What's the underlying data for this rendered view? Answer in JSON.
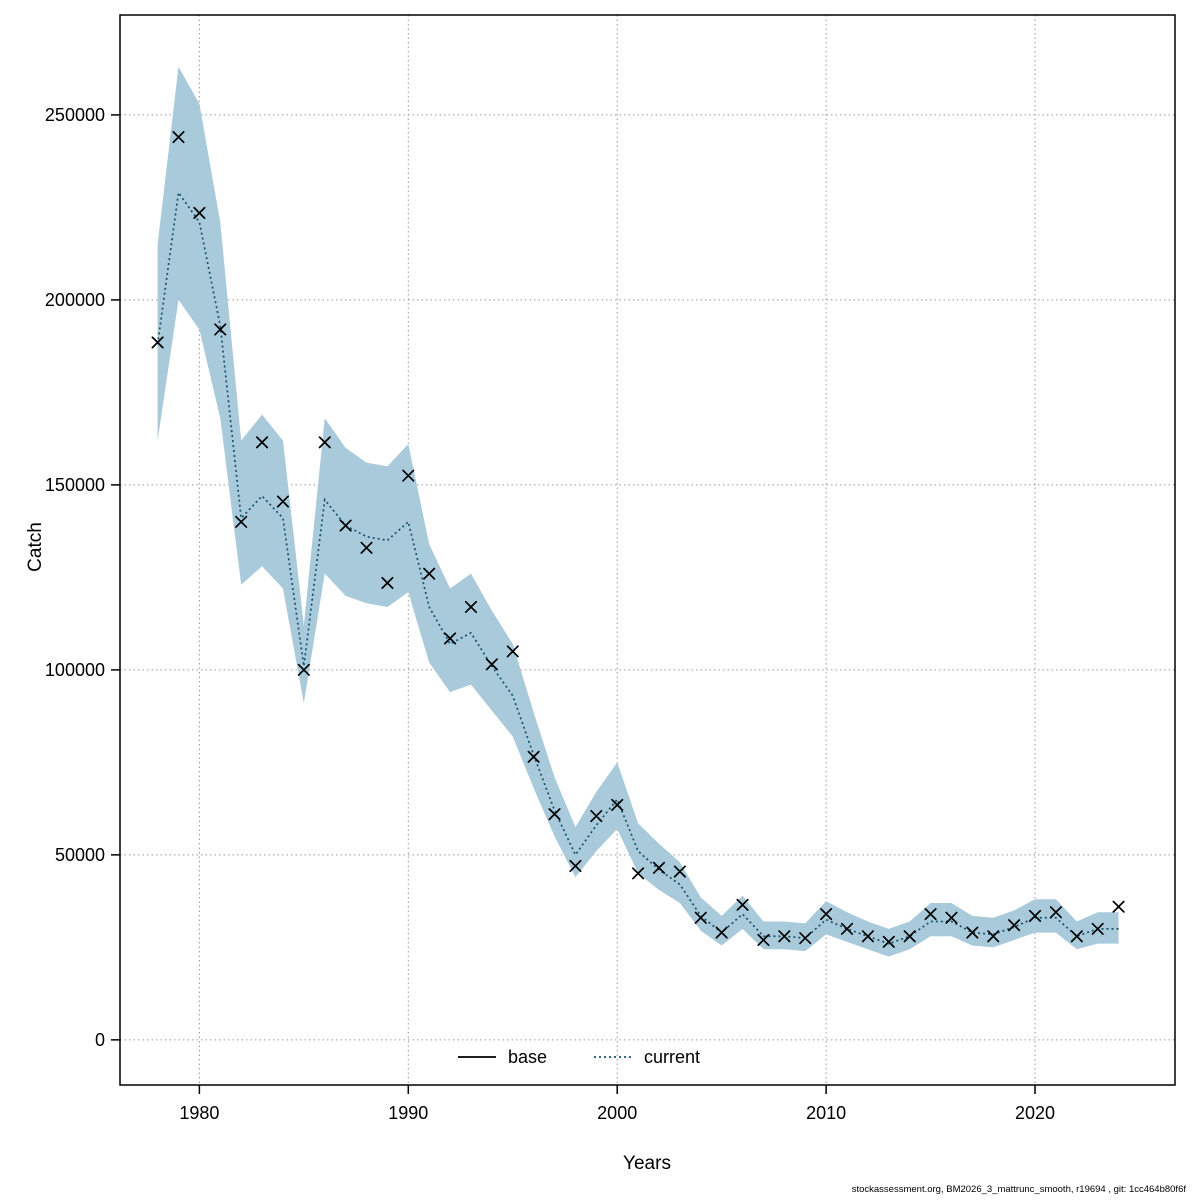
{
  "axis": {
    "ylabel": "Catch",
    "xlabel": "Years"
  },
  "footer": {
    "text": "stockassessment.org, BM2026_3_mattrunc_smooth, r19694 , git: 1cc464b80f6f"
  },
  "chart_data": {
    "type": "line",
    "title": "",
    "xlabel": "Years",
    "ylabel": "Catch",
    "xlim": [
      1976.2,
      2026.7
    ],
    "ylim": [
      -12200,
      277000
    ],
    "x_ticks": [
      1980,
      1990,
      2000,
      2010,
      2020
    ],
    "y_ticks": [
      0,
      50000,
      100000,
      150000,
      200000,
      250000
    ],
    "grid": true,
    "legend_position": "bottom-center-inside",
    "legend": [
      {
        "label": "base",
        "line_style": "solid",
        "color": "#000000"
      },
      {
        "label": "current",
        "line_style": "dotted",
        "color": "#16526b"
      }
    ],
    "colors": {
      "band": "#a8cadb",
      "line": "#16526b",
      "marker": "#000000",
      "grid": "#999999",
      "frame": "#000000"
    },
    "years": [
      1978,
      1979,
      1980,
      1981,
      1982,
      1983,
      1984,
      1985,
      1986,
      1987,
      1988,
      1989,
      1990,
      1991,
      1992,
      1993,
      1994,
      1995,
      1996,
      1997,
      1998,
      1999,
      2000,
      2001,
      2002,
      2003,
      2004,
      2005,
      2006,
      2007,
      2008,
      2009,
      2010,
      2011,
      2012,
      2013,
      2014,
      2015,
      2016,
      2017,
      2018,
      2019,
      2020,
      2021,
      2022,
      2023,
      2024
    ],
    "observed": [
      188500,
      244000,
      223500,
      192000,
      140000,
      161500,
      145500,
      100000,
      161500,
      139000,
      133000,
      123500,
      152500,
      126000,
      108500,
      117000,
      101500,
      105000,
      76500,
      61000,
      47000,
      60500,
      63500,
      45000,
      46500,
      45500,
      33000,
      29000,
      36500,
      27000,
      28000,
      27500,
      34000,
      30000,
      28000,
      26500,
      28000,
      34000,
      33000,
      29000,
      28000,
      31000,
      33500,
      34500,
      28000,
      30000,
      36000
    ],
    "fit": [
      188000,
      229000,
      221000,
      193000,
      141000,
      147000,
      141000,
      101000,
      146000,
      139000,
      136000,
      135000,
      140000,
      117000,
      107000,
      110000,
      101000,
      93000,
      77000,
      62000,
      50000,
      58000,
      65000,
      51000,
      46000,
      42000,
      33500,
      29000,
      34000,
      28000,
      28000,
      27500,
      32500,
      30000,
      28000,
      26000,
      28000,
      32000,
      32000,
      29000,
      28500,
      30500,
      33000,
      33000,
      28000,
      30000,
      30000
    ],
    "band_low": [
      162000,
      200000,
      192000,
      168000,
      123000,
      128000,
      122000,
      91000,
      126000,
      120000,
      118000,
      117000,
      121000,
      102000,
      94000,
      96000,
      89000,
      82000,
      68000,
      55000,
      44000,
      51000,
      57000,
      45000,
      40500,
      37000,
      29500,
      25500,
      30000,
      24500,
      24500,
      24000,
      28500,
      26500,
      24500,
      22500,
      24500,
      28000,
      28000,
      25500,
      25000,
      27000,
      29000,
      29000,
      24500,
      26000,
      26000
    ],
    "band_high": [
      215000,
      263000,
      253000,
      221000,
      162000,
      169000,
      162000,
      112000,
      168000,
      160000,
      156000,
      155000,
      161000,
      134000,
      122000,
      126000,
      116000,
      107000,
      88500,
      71000,
      57500,
      67000,
      75000,
      58500,
      53000,
      48000,
      38500,
      33500,
      39000,
      32000,
      32000,
      31500,
      37500,
      34500,
      32000,
      30000,
      32000,
      37000,
      37000,
      33500,
      33000,
      35000,
      38000,
      38000,
      32000,
      34500,
      34500
    ]
  }
}
